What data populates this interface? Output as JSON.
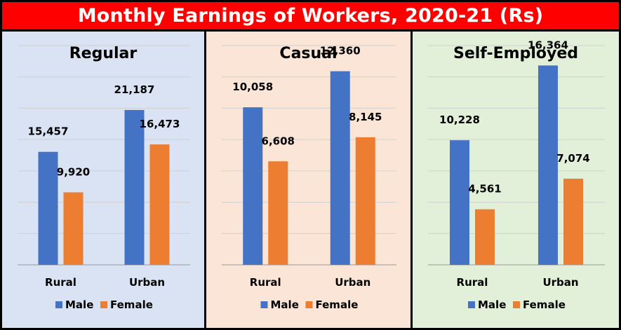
{
  "title": "Monthly Earnings of Workers, 2020-21 (Rs)",
  "colors": {
    "male": "#4472c4",
    "female": "#ed7d31",
    "title_bg": "#ff0000"
  },
  "chart_data": [
    {
      "type": "bar",
      "title": "Regular",
      "background": "#dae3f3",
      "categories": [
        "Rural",
        "Urban"
      ],
      "series": [
        {
          "name": "Male",
          "values": [
            15457,
            21187
          ],
          "labels": [
            "15,457",
            "21,187"
          ]
        },
        {
          "name": "Female",
          "values": [
            9920,
            16473
          ],
          "labels": [
            "9,920",
            "16,473"
          ]
        }
      ],
      "ylim": [
        0,
        30000
      ],
      "grid": true,
      "legend": "bottom"
    },
    {
      "type": "bar",
      "title": "Casual",
      "background": "#fbe5d6",
      "categories": [
        "Rural",
        "Urban"
      ],
      "series": [
        {
          "name": "Male",
          "values": [
            10058,
            12360
          ],
          "labels": [
            "10,058",
            "12,360"
          ]
        },
        {
          "name": "Female",
          "values": [
            6608,
            8145
          ],
          "labels": [
            "6,608",
            "8,145"
          ]
        }
      ],
      "ylim": [
        0,
        14000
      ],
      "grid": true,
      "legend": "bottom"
    },
    {
      "type": "bar",
      "title": "Self-Employed",
      "background": "#e2f0d9",
      "categories": [
        "Rural",
        "Urban"
      ],
      "series": [
        {
          "name": "Male",
          "values": [
            10228,
            16364
          ],
          "labels": [
            "10,228",
            "16,364"
          ]
        },
        {
          "name": "Female",
          "values": [
            4561,
            7074
          ],
          "labels": [
            "4,561",
            "7,074"
          ]
        }
      ],
      "ylim": [
        0,
        18000
      ],
      "grid": true,
      "legend": "bottom"
    }
  ]
}
